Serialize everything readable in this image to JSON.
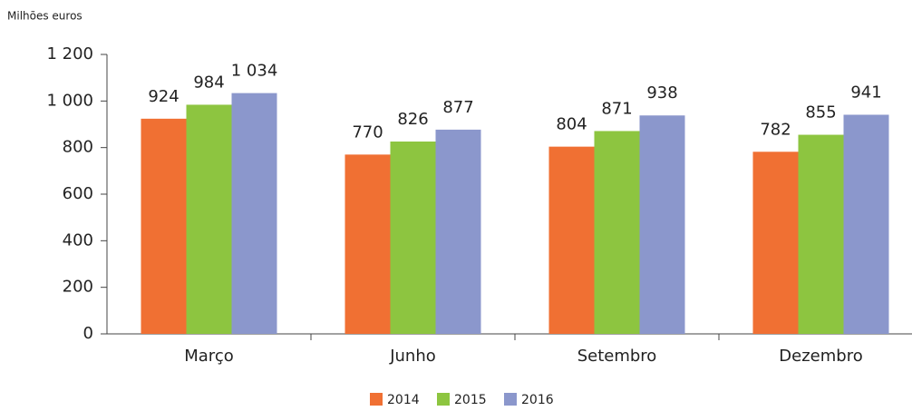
{
  "chart_data": {
    "type": "bar",
    "y_axis_label": "Milhões euros",
    "categories": [
      "Março",
      "Junho",
      "Setembro",
      "Dezembro"
    ],
    "series": [
      {
        "name": "2014",
        "color": "#f07033",
        "values": [
          924,
          770,
          804,
          782
        ]
      },
      {
        "name": "2015",
        "color": "#8dc540",
        "values": [
          984,
          826,
          871,
          855
        ]
      },
      {
        "name": "2016",
        "color": "#8b97cc",
        "values": [
          1034,
          877,
          938,
          941
        ],
        "value_labels": [
          "1 034",
          "877",
          "938",
          "941"
        ]
      }
    ],
    "ylim": [
      0,
      1200
    ],
    "yticks": [
      0,
      200,
      400,
      600,
      800,
      {
        "value": 1000,
        "label": "1 000"
      },
      {
        "value": 1200,
        "label": "1 200"
      }
    ],
    "grid": false,
    "legend": "bottom"
  }
}
